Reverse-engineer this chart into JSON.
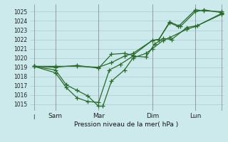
{
  "background_color": "#cceaec",
  "grid_color": "#aaccce",
  "line_color": "#2a6a2a",
  "xlabel": "Pression niveau de la mer( hPa )",
  "ylim": [
    1014.3,
    1025.8
  ],
  "xlim": [
    -0.2,
    8.8
  ],
  "yticks": [
    1015,
    1016,
    1017,
    1018,
    1019,
    1020,
    1021,
    1022,
    1023,
    1024,
    1025
  ],
  "xtick_labels": [
    "Sam",
    "Mar",
    "Dim",
    "Lun"
  ],
  "xtick_positions": [
    1.0,
    3.0,
    5.5,
    7.5
  ],
  "vline_positions": [
    0.0,
    1.0,
    3.0,
    5.5,
    7.5,
    8.7
  ],
  "series": [
    {
      "x": [
        0.0,
        1.0,
        2.0,
        3.0,
        3.6,
        4.2,
        4.6,
        5.5,
        5.8,
        6.3,
        6.7,
        7.5,
        7.9,
        8.7
      ],
      "y": [
        1019.1,
        1019.1,
        1019.1,
        1019.0,
        1019.5,
        1020.2,
        1020.5,
        1021.9,
        1022.0,
        1023.8,
        1023.4,
        1025.2,
        1025.1,
        1025.0
      ]
    },
    {
      "x": [
        0.0,
        1.0,
        1.5,
        2.0,
        2.5,
        3.0,
        3.2,
        3.6,
        4.2,
        4.6,
        5.2,
        5.5,
        6.0,
        6.3,
        7.1,
        7.5,
        8.7
      ],
      "y": [
        1019.1,
        1018.7,
        1017.1,
        1016.5,
        1015.9,
        1014.8,
        1014.8,
        1017.5,
        1018.7,
        1020.0,
        1020.5,
        1021.0,
        1021.9,
        1022.2,
        1023.1,
        1023.4,
        1024.7
      ]
    },
    {
      "x": [
        0.0,
        1.0,
        1.5,
        2.0,
        2.5,
        3.0,
        3.5,
        4.0,
        4.6,
        5.2,
        5.6,
        6.0,
        6.4,
        7.1,
        7.6,
        8.7
      ],
      "y": [
        1019.1,
        1018.4,
        1016.8,
        1015.7,
        1015.3,
        1015.2,
        1018.7,
        1019.3,
        1020.2,
        1020.1,
        1021.5,
        1022.1,
        1022.0,
        1023.3,
        1023.5,
        1024.8
      ]
    },
    {
      "x": [
        0.0,
        1.0,
        2.0,
        3.0,
        3.6,
        4.2,
        4.6,
        5.5,
        5.8,
        6.3,
        6.8,
        7.5,
        7.9,
        8.7
      ],
      "y": [
        1019.1,
        1019.0,
        1019.2,
        1018.9,
        1020.4,
        1020.5,
        1020.3,
        1021.9,
        1022.0,
        1023.9,
        1023.4,
        1025.0,
        1025.2,
        1024.9
      ]
    }
  ]
}
